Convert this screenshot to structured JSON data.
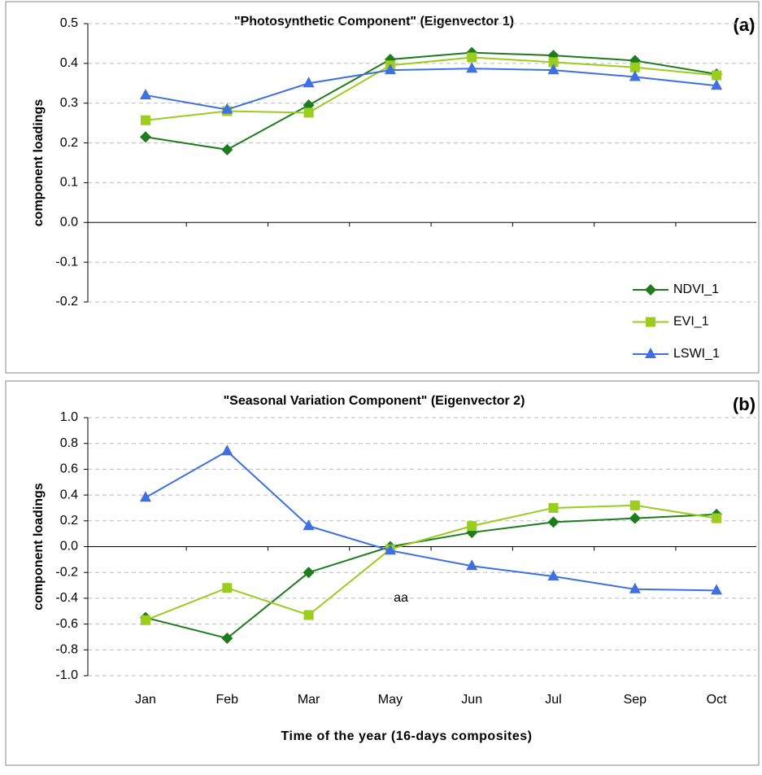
{
  "chart_data": [
    {
      "type": "line",
      "title": "\"Photosynthetic Component\" (Eigenvector 1)",
      "panel_label": "(a)",
      "ylabel": "component loadings",
      "ylim": [
        -0.2,
        0.5
      ],
      "yticks": [
        0.5,
        0.4,
        0.3,
        0.2,
        0.1,
        {
          "value": 0,
          "label": "0.0"
        },
        -0.1,
        -0.2
      ],
      "grid": true,
      "legend": "bottom-right",
      "series": [
        {
          "name": "NDVI_1",
          "color": "#1e7b1e",
          "marker": "diamond",
          "values": [
            0.215,
            0.183,
            0.295,
            0.41,
            0.427,
            0.42,
            0.407,
            0.373
          ]
        },
        {
          "name": "EVI_1",
          "color": "#9acd1e",
          "marker": "square",
          "values": [
            0.257,
            0.28,
            0.276,
            0.395,
            0.415,
            0.403,
            0.39,
            0.37
          ]
        },
        {
          "name": "LSWI_1",
          "color": "#3f6fe0",
          "marker": "triangle",
          "values": [
            0.32,
            0.284,
            0.35,
            0.383,
            0.387,
            0.383,
            0.366,
            0.344
          ]
        }
      ]
    },
    {
      "type": "line",
      "title": "\"Seasonal Variation Component\" (Eigenvector 2)",
      "panel_label": "(b)",
      "ylabel": "component loadings",
      "xlabel": "Time of the year (16-days composites)",
      "categories": [
        "Jan",
        "Feb",
        "Mar",
        "May",
        "Jun",
        "Jul",
        "Sep",
        "Oct"
      ],
      "ylim": [
        -1,
        1
      ],
      "yticks": [
        {
          "value": 1,
          "label": "1.0"
        },
        0.8,
        0.6,
        0.4,
        0.2,
        {
          "value": 0,
          "label": "0.0"
        },
        -0.2,
        -0.4,
        -0.6,
        -0.8,
        {
          "value": -1,
          "label": "-1.0"
        }
      ],
      "grid": true,
      "annotation": "aa",
      "series": [
        {
          "color": "#1e7b1e",
          "marker": "diamond",
          "values": [
            -0.55,
            -0.71,
            -0.2,
            0.0,
            0.11,
            0.19,
            0.22,
            0.25
          ]
        },
        {
          "color": "#9acd1e",
          "marker": "square",
          "values": [
            -0.57,
            -0.32,
            -0.53,
            -0.02,
            0.16,
            0.3,
            0.32,
            0.22
          ]
        },
        {
          "color": "#3f6fe0",
          "marker": "triangle",
          "values": [
            0.38,
            0.74,
            0.16,
            -0.03,
            -0.15,
            -0.23,
            -0.33,
            -0.34
          ]
        }
      ]
    }
  ]
}
